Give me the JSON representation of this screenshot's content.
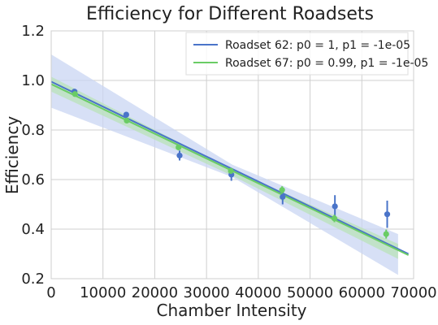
{
  "chart_data": {
    "type": "scatter",
    "title": "Efficiency for Different Roadsets",
    "xlabel": "Chamber Intensity",
    "ylabel": "Efficiency",
    "xlim": [
      0,
      70000
    ],
    "ylim": [
      0.2,
      1.2
    ],
    "x_ticks": [
      0,
      10000,
      20000,
      30000,
      40000,
      50000,
      60000,
      70000
    ],
    "x_tick_labels": [
      "0",
      "10000",
      "20000",
      "30000",
      "40000",
      "50000",
      "60000",
      "70000"
    ],
    "y_ticks": [
      0.2,
      0.4,
      0.6,
      0.8,
      1.0,
      1.2
    ],
    "y_tick_labels": [
      "0.2",
      "0.4",
      "0.6",
      "0.8",
      "1.0",
      "1.2"
    ],
    "grid": true,
    "legend_position": "top-right",
    "series": [
      {
        "name": "Roadset 62: p0 = 1, p1 = -1e-05",
        "color": "#4a74c9",
        "band_color": "#c9d6f3",
        "fit": {
          "x0": 0,
          "x1": 69000,
          "y0": 0.995,
          "y1": 0.3
        },
        "band_upper": {
          "x": [
            0,
            35000,
            67000
          ],
          "y": [
            1.105,
            0.66,
            0.38
          ]
        },
        "band_lower": {
          "x": [
            0,
            35000,
            67000
          ],
          "y": [
            0.89,
            0.61,
            0.215
          ]
        },
        "points": [
          {
            "x": 4500,
            "y": 0.955,
            "err": 0.01
          },
          {
            "x": 14500,
            "y": 0.862,
            "err": 0.01
          },
          {
            "x": 24800,
            "y": 0.697,
            "err": 0.02
          },
          {
            "x": 34800,
            "y": 0.62,
            "err": 0.025
          },
          {
            "x": 44700,
            "y": 0.53,
            "err": 0.03
          },
          {
            "x": 54800,
            "y": 0.492,
            "err": 0.045
          },
          {
            "x": 64900,
            "y": 0.46,
            "err": 0.055
          }
        ]
      },
      {
        "name": "Roadset 67: p0 = 0.99, p1 = -1e-05",
        "color": "#6acc65",
        "band_color": "#b8e2b5",
        "fit": {
          "x0": 0,
          "x1": 69000,
          "y0": 0.985,
          "y1": 0.295
        },
        "band_upper": {
          "x": [
            0,
            35000,
            67000
          ],
          "y": [
            1.015,
            0.64,
            0.34
          ]
        },
        "band_lower": {
          "x": [
            0,
            35000,
            67000
          ],
          "y": [
            0.955,
            0.615,
            0.28
          ]
        },
        "points": [
          {
            "x": 4600,
            "y": 0.945,
            "err": 0.008
          },
          {
            "x": 14600,
            "y": 0.838,
            "err": 0.008
          },
          {
            "x": 24600,
            "y": 0.73,
            "err": 0.01
          },
          {
            "x": 34700,
            "y": 0.635,
            "err": 0.012
          },
          {
            "x": 44600,
            "y": 0.558,
            "err": 0.015
          },
          {
            "x": 54700,
            "y": 0.443,
            "err": 0.015
          },
          {
            "x": 64700,
            "y": 0.38,
            "err": 0.018
          }
        ]
      }
    ]
  }
}
